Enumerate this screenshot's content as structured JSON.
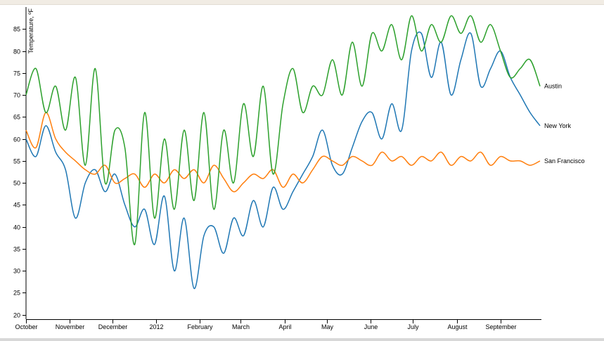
{
  "chart_data": {
    "type": "line",
    "ylabel": "Temperature, ºF",
    "ylim": [
      19,
      90
    ],
    "yticks": [
      20,
      25,
      30,
      35,
      40,
      45,
      50,
      55,
      60,
      65,
      70,
      75,
      80,
      85
    ],
    "x_range": [
      "2011-10-01",
      "2012-09-30"
    ],
    "xticks": [
      {
        "date": "2011-10-01",
        "label": "October"
      },
      {
        "date": "2011-11-01",
        "label": "November"
      },
      {
        "date": "2011-12-01",
        "label": "December"
      },
      {
        "date": "2012-01-01",
        "label": "2012"
      },
      {
        "date": "2012-02-01",
        "label": "February"
      },
      {
        "date": "2012-03-01",
        "label": "March"
      },
      {
        "date": "2012-04-01",
        "label": "April"
      },
      {
        "date": "2012-05-01",
        "label": "May"
      },
      {
        "date": "2012-06-01",
        "label": "June"
      },
      {
        "date": "2012-07-01",
        "label": "July"
      },
      {
        "date": "2012-08-01",
        "label": "August"
      },
      {
        "date": "2012-09-01",
        "label": "September"
      }
    ],
    "grid": false,
    "legend": "end-of-line labels at right",
    "series": [
      {
        "name": "New York",
        "color": "#1f77b4",
        "x": [
          "2011-10-01",
          "2011-10-08",
          "2011-10-15",
          "2011-10-22",
          "2011-10-29",
          "2011-11-05",
          "2011-11-12",
          "2011-11-19",
          "2011-11-26",
          "2011-12-03",
          "2011-12-10",
          "2011-12-17",
          "2011-12-24",
          "2011-12-31",
          "2012-01-07",
          "2012-01-14",
          "2012-01-21",
          "2012-01-28",
          "2012-02-04",
          "2012-02-11",
          "2012-02-18",
          "2012-02-25",
          "2012-03-03",
          "2012-03-10",
          "2012-03-17",
          "2012-03-24",
          "2012-03-31",
          "2012-04-07",
          "2012-04-14",
          "2012-04-21",
          "2012-04-28",
          "2012-05-05",
          "2012-05-12",
          "2012-05-19",
          "2012-05-26",
          "2012-06-02",
          "2012-06-09",
          "2012-06-16",
          "2012-06-23",
          "2012-06-30",
          "2012-07-07",
          "2012-07-14",
          "2012-07-21",
          "2012-07-28",
          "2012-08-04",
          "2012-08-11",
          "2012-08-18",
          "2012-08-25",
          "2012-09-01",
          "2012-09-08",
          "2012-09-15",
          "2012-09-22",
          "2012-09-29"
        ],
        "values": [
          60,
          56,
          63,
          57,
          53,
          42,
          50,
          53,
          48,
          52,
          45,
          40,
          44,
          36,
          47,
          30,
          42,
          26,
          38,
          40,
          34,
          42,
          38,
          46,
          40,
          49,
          44,
          48,
          52,
          56,
          62,
          54,
          52,
          58,
          64,
          66,
          60,
          68,
          62,
          80,
          84,
          74,
          82,
          70,
          78,
          84,
          72,
          76,
          80,
          74,
          70,
          66,
          63
        ]
      },
      {
        "name": "San Francisco",
        "color": "#ff7f0e",
        "x": [
          "2011-10-01",
          "2011-10-08",
          "2011-10-15",
          "2011-10-22",
          "2011-10-29",
          "2011-11-05",
          "2011-11-12",
          "2011-11-19",
          "2011-11-26",
          "2011-12-03",
          "2011-12-10",
          "2011-12-17",
          "2011-12-24",
          "2011-12-31",
          "2012-01-07",
          "2012-01-14",
          "2012-01-21",
          "2012-01-28",
          "2012-02-04",
          "2012-02-11",
          "2012-02-18",
          "2012-02-25",
          "2012-03-03",
          "2012-03-10",
          "2012-03-17",
          "2012-03-24",
          "2012-03-31",
          "2012-04-07",
          "2012-04-14",
          "2012-04-21",
          "2012-04-28",
          "2012-05-05",
          "2012-05-12",
          "2012-05-19",
          "2012-05-26",
          "2012-06-02",
          "2012-06-09",
          "2012-06-16",
          "2012-06-23",
          "2012-06-30",
          "2012-07-07",
          "2012-07-14",
          "2012-07-21",
          "2012-07-28",
          "2012-08-04",
          "2012-08-11",
          "2012-08-18",
          "2012-08-25",
          "2012-09-01",
          "2012-09-08",
          "2012-09-15",
          "2012-09-22",
          "2012-09-29"
        ],
        "values": [
          62,
          58,
          66,
          60,
          57,
          55,
          53,
          52,
          54,
          50,
          51,
          52,
          49,
          52,
          50,
          53,
          51,
          53,
          50,
          54,
          51,
          48,
          50,
          52,
          51,
          53,
          49,
          52,
          50,
          53,
          56,
          55,
          54,
          56,
          55,
          54,
          57,
          55,
          56,
          54,
          56,
          55,
          57,
          54,
          56,
          55,
          57,
          54,
          56,
          55,
          55,
          54,
          55
        ]
      },
      {
        "name": "Austin",
        "color": "#2ca02c",
        "x": [
          "2011-10-01",
          "2011-10-08",
          "2011-10-15",
          "2011-10-22",
          "2011-10-29",
          "2011-11-05",
          "2011-11-12",
          "2011-11-19",
          "2011-11-26",
          "2011-12-03",
          "2011-12-10",
          "2011-12-17",
          "2011-12-24",
          "2011-12-31",
          "2012-01-07",
          "2012-01-14",
          "2012-01-21",
          "2012-01-28",
          "2012-02-04",
          "2012-02-11",
          "2012-02-18",
          "2012-02-25",
          "2012-03-03",
          "2012-03-10",
          "2012-03-17",
          "2012-03-24",
          "2012-03-31",
          "2012-04-07",
          "2012-04-14",
          "2012-04-21",
          "2012-04-28",
          "2012-05-05",
          "2012-05-12",
          "2012-05-19",
          "2012-05-26",
          "2012-06-02",
          "2012-06-09",
          "2012-06-16",
          "2012-06-23",
          "2012-06-30",
          "2012-07-07",
          "2012-07-14",
          "2012-07-21",
          "2012-07-28",
          "2012-08-04",
          "2012-08-11",
          "2012-08-18",
          "2012-08-25",
          "2012-09-01",
          "2012-09-08",
          "2012-09-15",
          "2012-09-22",
          "2012-09-29"
        ],
        "values": [
          70,
          76,
          66,
          72,
          62,
          74,
          54,
          76,
          50,
          62,
          58,
          36,
          66,
          42,
          60,
          44,
          62,
          46,
          66,
          44,
          62,
          50,
          68,
          56,
          72,
          52,
          68,
          76,
          66,
          72,
          70,
          78,
          70,
          82,
          72,
          84,
          80,
          86,
          78,
          88,
          80,
          86,
          82,
          88,
          84,
          88,
          82,
          86,
          80,
          74,
          76,
          78,
          72
        ]
      }
    ]
  }
}
